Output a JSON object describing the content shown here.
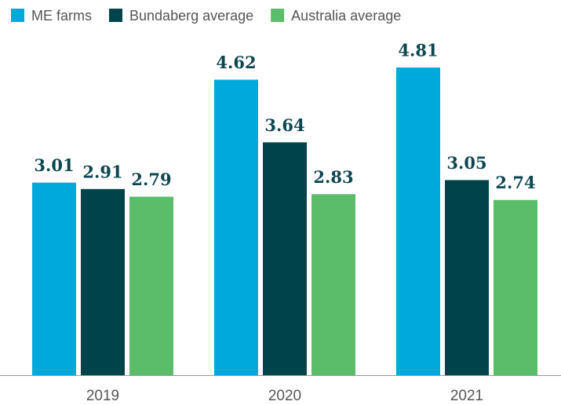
{
  "chart_data": {
    "type": "bar",
    "categories": [
      "2019",
      "2020",
      "2021"
    ],
    "series": [
      {
        "name": "ME farms",
        "color": "#00a9dc",
        "values": [
          3.01,
          4.62,
          4.81
        ]
      },
      {
        "name": "Bundaberg average",
        "color": "#00434b",
        "values": [
          2.91,
          3.64,
          3.05
        ]
      },
      {
        "name": "Australia average",
        "color": "#5bbd6a",
        "values": [
          2.79,
          2.83,
          2.74
        ]
      }
    ],
    "legend": "top-left"
  }
}
